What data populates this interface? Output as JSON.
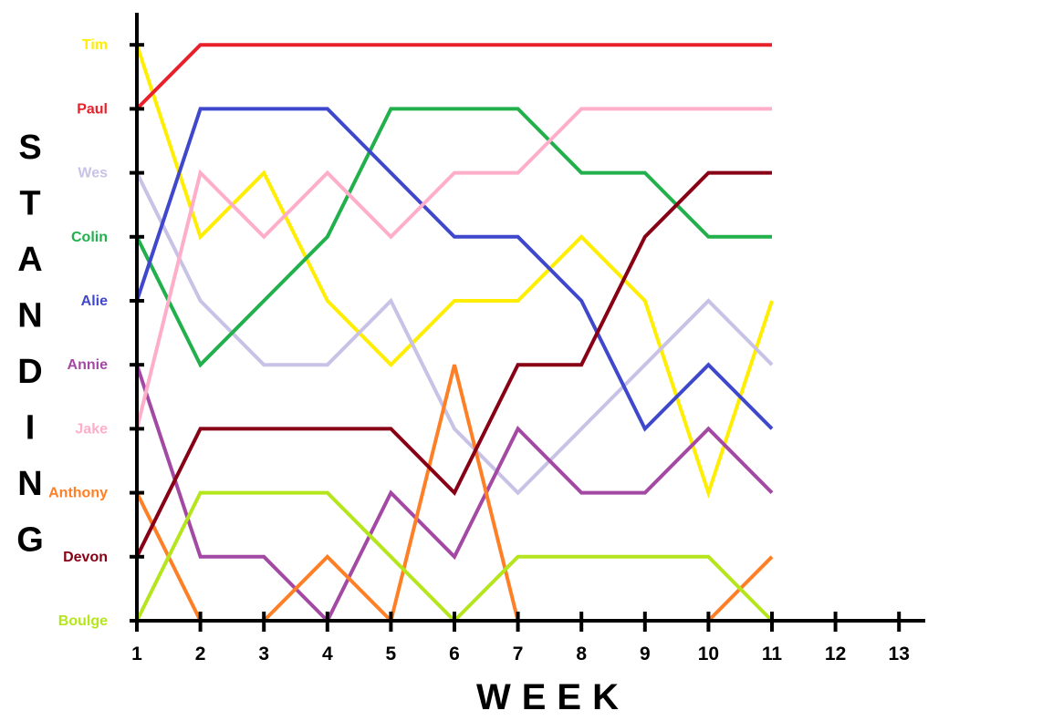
{
  "chart_data": {
    "type": "line",
    "xlabel": "WEEK",
    "ylabel": "STANDING",
    "x_ticks": [
      "1",
      "2",
      "3",
      "4",
      "5",
      "6",
      "7",
      "8",
      "9",
      "10",
      "11",
      "12",
      "13"
    ],
    "categories": [
      "Boulge",
      "Devon",
      "Anthony",
      "Jake",
      "Annie",
      "Alie",
      "Colin",
      "Wes",
      "Paul",
      "Tim"
    ],
    "x": [
      1,
      2,
      3,
      4,
      5,
      6,
      7,
      8,
      9,
      10,
      11
    ],
    "series": [
      {
        "name": "Tim",
        "color": "#ffee00",
        "values": [
          10,
          7,
          8,
          6,
          5,
          6,
          6,
          7,
          6,
          3,
          6
        ]
      },
      {
        "name": "Paul",
        "color": "#e8202a",
        "values": [
          9,
          10,
          10,
          10,
          10,
          10,
          10,
          10,
          10,
          10,
          10
        ]
      },
      {
        "name": "Wes",
        "color": "#c8c2e6",
        "values": [
          8,
          6,
          5,
          5,
          6,
          4,
          3,
          4,
          5,
          6,
          5
        ]
      },
      {
        "name": "Colin",
        "color": "#22b04c",
        "values": [
          7,
          5,
          6,
          7,
          9,
          9,
          9,
          8,
          8,
          7,
          7
        ]
      },
      {
        "name": "Alie",
        "color": "#3f48cc",
        "values": [
          6,
          9,
          9,
          9,
          8,
          7,
          7,
          6,
          4,
          5,
          4
        ]
      },
      {
        "name": "Annie",
        "color": "#a349a4",
        "values": [
          5,
          2,
          2,
          1,
          3,
          2,
          4,
          3,
          3,
          4,
          3
        ]
      },
      {
        "name": "Jake",
        "color": "#ffaec9",
        "values": [
          4,
          8,
          7,
          8,
          7,
          8,
          8,
          9,
          9,
          9,
          9
        ]
      },
      {
        "name": "Anthony",
        "color": "#ff7f27",
        "values": [
          3,
          1,
          1,
          2,
          1,
          5,
          1,
          1,
          1,
          1,
          2
        ]
      },
      {
        "name": "Devon",
        "color": "#880015",
        "values": [
          2,
          4,
          4,
          4,
          4,
          3,
          5,
          5,
          7,
          8,
          8
        ]
      },
      {
        "name": "Boulge",
        "color": "#b5e61d",
        "values": [
          1,
          3,
          3,
          3,
          2,
          1,
          2,
          2,
          2,
          2,
          1
        ]
      }
    ]
  }
}
